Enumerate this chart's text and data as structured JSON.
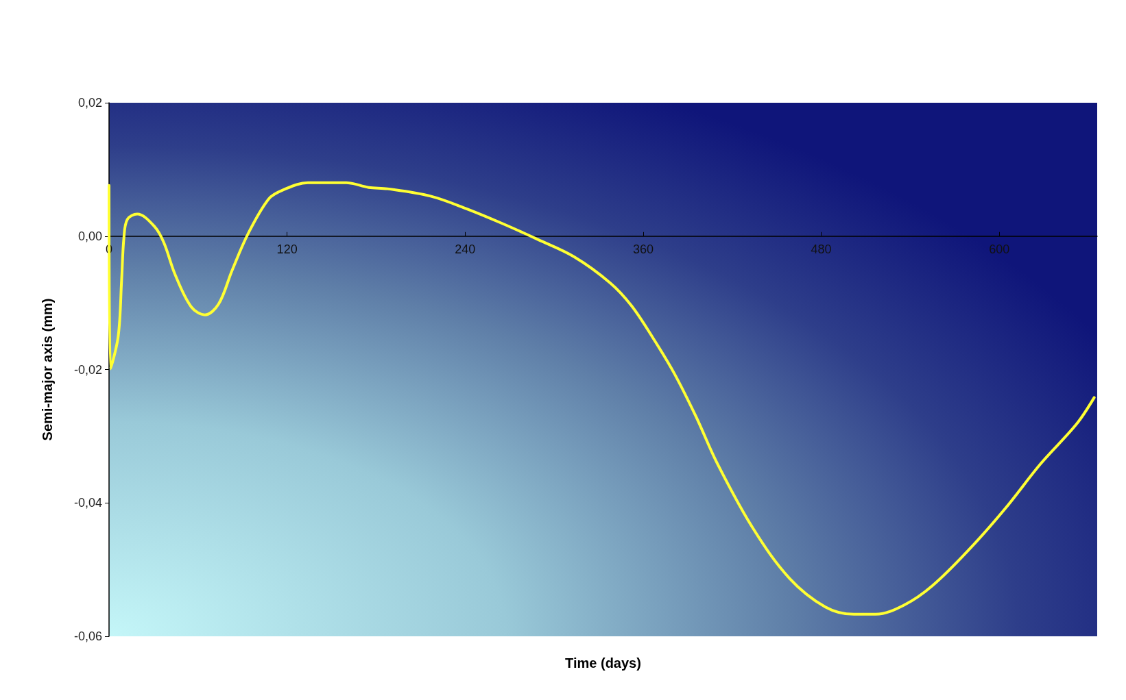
{
  "chart_data": {
    "type": "line",
    "xlabel": "Time (days)",
    "ylabel": "Semi-major axis (mm)",
    "xlim": [
      0,
      666
    ],
    "xticks": [
      0,
      120,
      240,
      360,
      480,
      600
    ],
    "ylim": [
      -0.06,
      0.02
    ],
    "yticks": [
      {
        "value": -0.06,
        "label": "-0,06"
      },
      {
        "value": -0.04,
        "label": "-0,04"
      },
      {
        "value": -0.02,
        "label": "-0,02"
      },
      {
        "value": 0,
        "label": "0,00"
      },
      {
        "value": 0.02,
        "label": "0,02"
      }
    ],
    "marker": "none",
    "line_style": "solid",
    "series": [
      {
        "color": "#ffff33",
        "x": [
          0,
          1,
          6.2,
          8.5,
          10,
          12.3,
          19,
          30.8,
          37,
          44.6,
          55.4,
          64.6,
          73.8,
          83,
          93.8,
          107.7,
          117,
          134,
          160,
          175,
          187.7,
          216.7,
          241,
          265,
          289,
          313.5,
          337.7,
          352,
          366.7,
          381,
          395.7,
          410,
          434,
          458.6,
          482.8,
          502,
          516.7,
          536,
          555,
          579.6,
          603.8,
          628,
          652,
          664
        ],
        "values": [
          0.0076,
          -0.0199,
          -0.015,
          -0.0065,
          -0.0003,
          0.0025,
          0.0033,
          0.0014,
          -0.001,
          -0.0058,
          -0.0106,
          -0.0118,
          -0.0102,
          -0.0051,
          0.0004,
          0.0056,
          0.0069,
          0.008,
          0.008,
          0.0073,
          0.0071,
          0.006,
          0.0041,
          0.0019,
          -0.0005,
          -0.0031,
          -0.007,
          -0.0104,
          -0.0153,
          -0.0206,
          -0.0271,
          -0.0341,
          -0.0438,
          -0.0513,
          -0.0556,
          -0.0567,
          -0.0567,
          -0.0553,
          -0.0524,
          -0.047,
          -0.0409,
          -0.0341,
          -0.0282,
          -0.0242
        ]
      }
    ]
  }
}
